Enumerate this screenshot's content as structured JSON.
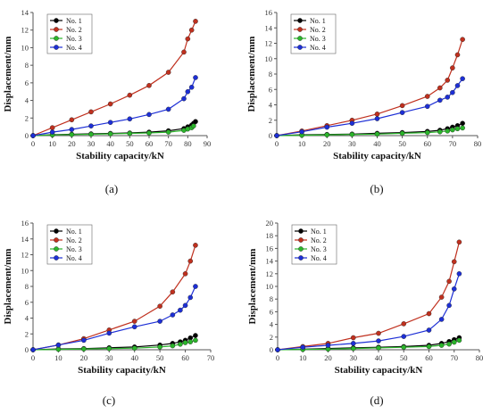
{
  "chart_data": [
    {
      "type": "line",
      "panel_label": "(a)",
      "xlabel": "Stability capacity/kN",
      "ylabel": "Displacement/mm",
      "xlim": [
        0,
        90
      ],
      "ylim": [
        0,
        14
      ],
      "xticks": [
        "0",
        "10",
        "20",
        "30",
        "40",
        "50",
        "60",
        "70",
        "80",
        "90"
      ],
      "yticks": [
        "0",
        "2",
        "4",
        "6",
        "8",
        "10",
        "12",
        "14"
      ],
      "legend_position": "top-left",
      "series": [
        {
          "name": "No. 1",
          "color": "#000000",
          "x": [
            0,
            10,
            20,
            30,
            40,
            50,
            60,
            70,
            78,
            80,
            82,
            83,
            84
          ],
          "y": [
            0,
            0.1,
            0.15,
            0.2,
            0.25,
            0.3,
            0.4,
            0.55,
            0.8,
            1.0,
            1.2,
            1.4,
            1.6
          ]
        },
        {
          "name": "No. 2",
          "color": "#c0301e",
          "x": [
            0,
            10,
            20,
            30,
            40,
            50,
            60,
            70,
            78,
            80,
            82,
            84
          ],
          "y": [
            0,
            0.9,
            1.8,
            2.7,
            3.6,
            4.6,
            5.7,
            7.2,
            9.5,
            11.0,
            12.0,
            13.0
          ]
        },
        {
          "name": "No. 3",
          "color": "#2bb52b",
          "x": [
            0,
            10,
            20,
            30,
            40,
            50,
            60,
            70,
            78,
            80,
            82,
            83
          ],
          "y": [
            0,
            0.08,
            0.12,
            0.15,
            0.2,
            0.25,
            0.3,
            0.4,
            0.6,
            0.75,
            0.9,
            1.1
          ]
        },
        {
          "name": "No. 4",
          "color": "#1d2fd6",
          "x": [
            0,
            10,
            20,
            30,
            40,
            50,
            60,
            70,
            78,
            80,
            82,
            84
          ],
          "y": [
            0,
            0.4,
            0.7,
            1.1,
            1.5,
            1.9,
            2.4,
            3.0,
            4.2,
            5.0,
            5.5,
            6.6
          ]
        }
      ]
    },
    {
      "type": "line",
      "panel_label": "(b)",
      "xlabel": "Stability capacity/kN",
      "ylabel": "Displacement/mm",
      "xlim": [
        0,
        80
      ],
      "ylim": [
        0,
        16
      ],
      "xticks": [
        "0",
        "10",
        "20",
        "30",
        "40",
        "50",
        "60",
        "70",
        "80"
      ],
      "yticks": [
        "0",
        "2",
        "4",
        "6",
        "8",
        "10",
        "12",
        "14",
        "16"
      ],
      "legend_position": "top-left",
      "series": [
        {
          "name": "No. 1",
          "color": "#000000",
          "x": [
            0,
            10,
            20,
            30,
            40,
            50,
            60,
            65,
            68,
            70,
            72,
            74
          ],
          "y": [
            0,
            0.1,
            0.15,
            0.2,
            0.3,
            0.4,
            0.55,
            0.7,
            0.9,
            1.1,
            1.3,
            1.6
          ]
        },
        {
          "name": "No. 2",
          "color": "#c0301e",
          "x": [
            0,
            10,
            20,
            30,
            40,
            50,
            60,
            65,
            68,
            70,
            72,
            74
          ],
          "y": [
            0,
            0.6,
            1.3,
            2.0,
            2.8,
            3.9,
            5.1,
            6.2,
            7.2,
            8.8,
            10.5,
            12.5
          ]
        },
        {
          "name": "No. 3",
          "color": "#2bb52b",
          "x": [
            0,
            10,
            20,
            30,
            40,
            50,
            60,
            65,
            68,
            70,
            72,
            74
          ],
          "y": [
            0,
            0.05,
            0.1,
            0.15,
            0.2,
            0.3,
            0.4,
            0.5,
            0.6,
            0.75,
            0.9,
            1.0
          ]
        },
        {
          "name": "No. 4",
          "color": "#1d2fd6",
          "x": [
            0,
            10,
            20,
            30,
            40,
            50,
            60,
            65,
            68,
            70,
            72,
            74
          ],
          "y": [
            0,
            0.5,
            1.1,
            1.6,
            2.2,
            3.0,
            3.8,
            4.6,
            5.0,
            5.6,
            6.5,
            7.4
          ]
        }
      ]
    },
    {
      "type": "line",
      "panel_label": "(c)",
      "xlabel": "Stability capacity/kN",
      "ylabel": "Displacement/mm",
      "xlim": [
        0,
        70
      ],
      "ylim": [
        0,
        16
      ],
      "xticks": [
        "0",
        "10",
        "20",
        "30",
        "40",
        "50",
        "60",
        "70"
      ],
      "yticks": [
        "0",
        "2",
        "4",
        "6",
        "8",
        "10",
        "12",
        "14",
        "16"
      ],
      "legend_position": "top-left",
      "series": [
        {
          "name": "No. 1",
          "color": "#000000",
          "x": [
            0,
            10,
            20,
            30,
            40,
            50,
            55,
            58,
            60,
            62,
            64
          ],
          "y": [
            0,
            0.1,
            0.15,
            0.25,
            0.35,
            0.6,
            0.8,
            1.0,
            1.2,
            1.5,
            1.8
          ]
        },
        {
          "name": "No. 2",
          "color": "#c0301e",
          "x": [
            0,
            10,
            20,
            30,
            40,
            50,
            55,
            60,
            62,
            64
          ],
          "y": [
            0,
            0.6,
            1.4,
            2.5,
            3.6,
            5.5,
            7.3,
            9.6,
            11.2,
            13.2
          ]
        },
        {
          "name": "No. 3",
          "color": "#2bb52b",
          "x": [
            0,
            10,
            20,
            30,
            40,
            50,
            55,
            58,
            60,
            62,
            64
          ],
          "y": [
            0,
            0.05,
            0.1,
            0.15,
            0.2,
            0.35,
            0.5,
            0.7,
            0.9,
            1.0,
            1.2
          ]
        },
        {
          "name": "No. 4",
          "color": "#1d2fd6",
          "x": [
            0,
            10,
            20,
            30,
            40,
            50,
            55,
            58,
            60,
            62,
            64
          ],
          "y": [
            0,
            0.6,
            1.2,
            2.1,
            2.9,
            3.6,
            4.4,
            5.0,
            5.6,
            6.6,
            8.0
          ]
        }
      ]
    },
    {
      "type": "line",
      "panel_label": "(d)",
      "xlabel": "Stability capacity/kN",
      "ylabel": "Displacement/mm",
      "xlim": [
        0,
        80
      ],
      "ylim": [
        0,
        20
      ],
      "xticks": [
        "0",
        "10",
        "20",
        "30",
        "40",
        "50",
        "60",
        "70",
        "80"
      ],
      "yticks": [
        "0",
        "2",
        "4",
        "6",
        "8",
        "10",
        "12",
        "14",
        "16",
        "18",
        "20"
      ],
      "legend_position": "top-left",
      "series": [
        {
          "name": "No. 1",
          "color": "#000000",
          "x": [
            0,
            10,
            20,
            30,
            40,
            50,
            60,
            65,
            68,
            70,
            72
          ],
          "y": [
            0,
            0.1,
            0.2,
            0.3,
            0.4,
            0.5,
            0.7,
            1.0,
            1.3,
            1.6,
            1.9
          ]
        },
        {
          "name": "No. 2",
          "color": "#c0301e",
          "x": [
            0,
            10,
            20,
            30,
            40,
            50,
            60,
            65,
            68,
            70,
            72
          ],
          "y": [
            0,
            0.5,
            1.0,
            1.9,
            2.6,
            4.1,
            5.7,
            8.3,
            10.8,
            13.9,
            17.0
          ]
        },
        {
          "name": "No. 3",
          "color": "#2bb52b",
          "x": [
            0,
            10,
            20,
            30,
            40,
            50,
            60,
            65,
            68,
            70,
            72
          ],
          "y": [
            0,
            0.05,
            0.1,
            0.2,
            0.3,
            0.4,
            0.5,
            0.7,
            0.9,
            1.2,
            1.5
          ]
        },
        {
          "name": "No. 4",
          "color": "#1d2fd6",
          "x": [
            0,
            10,
            20,
            30,
            40,
            50,
            60,
            65,
            68,
            70,
            72
          ],
          "y": [
            0,
            0.4,
            0.7,
            1.0,
            1.4,
            2.1,
            3.1,
            4.8,
            7.0,
            9.6,
            12.0
          ]
        }
      ]
    }
  ]
}
